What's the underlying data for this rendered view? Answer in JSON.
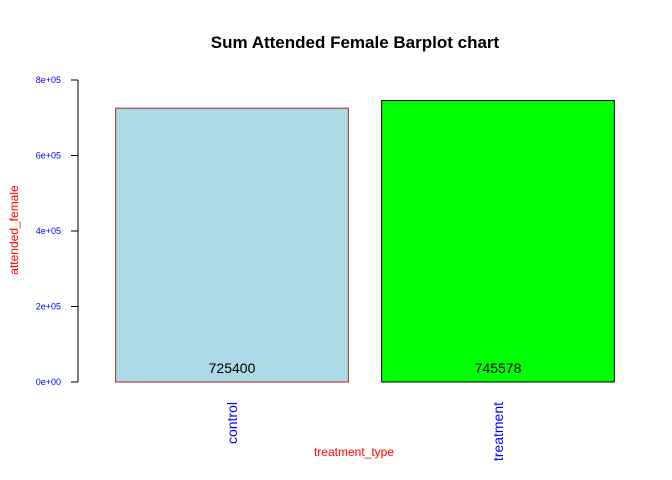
{
  "chart_data": {
    "type": "bar",
    "title": "Sum Attended Female Barplot chart",
    "xlabel": "treatment_type",
    "ylabel": "attended_female",
    "categories": [
      "control",
      "treatment"
    ],
    "values": [
      725400,
      745578
    ],
    "data_labels": [
      "725400",
      "745578"
    ],
    "ylim": [
      0,
      800000
    ],
    "y_ticks": [
      0,
      200000,
      400000,
      600000,
      800000
    ],
    "y_tick_labels": [
      "0e+00",
      "2e+05",
      "4e+05",
      "6e+05",
      "8e+05"
    ],
    "grid": false,
    "legend": "none",
    "colors": {
      "bars": [
        "#add8e6",
        "#00ff00"
      ],
      "bar_border": [
        "#b22222",
        "#000000"
      ],
      "title": "#000000",
      "axis_labels": "#ff0000",
      "tick_labels": "#0000ff",
      "category_labels": "#0000ff",
      "axis": "#000000"
    }
  }
}
